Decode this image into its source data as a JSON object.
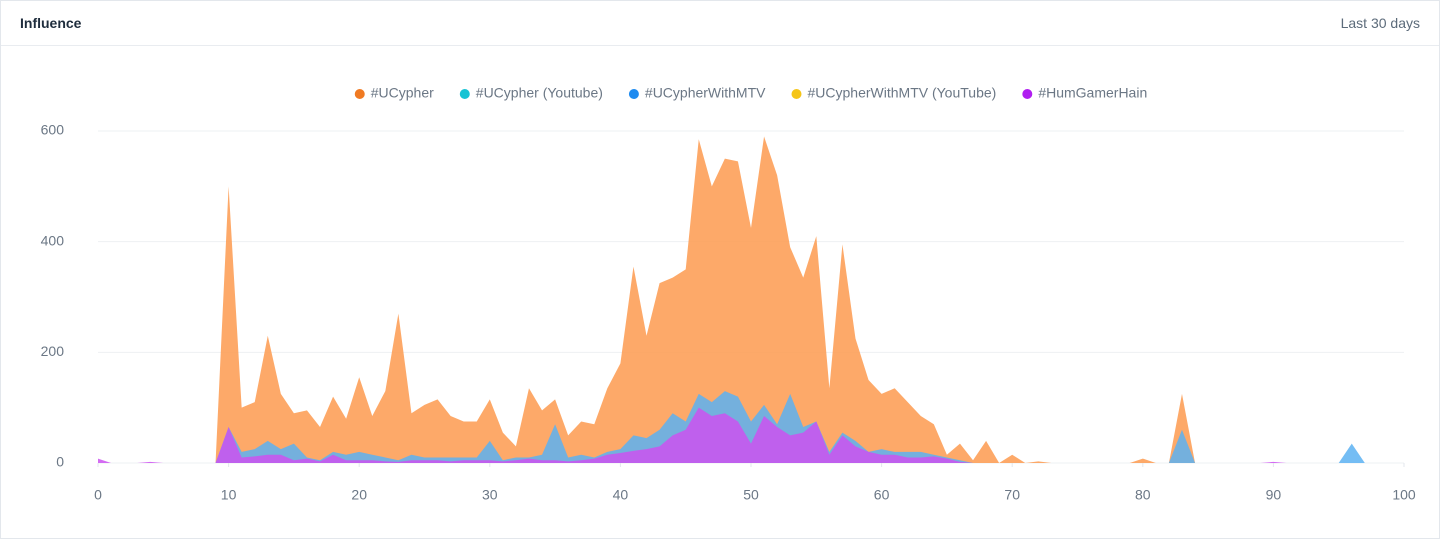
{
  "header": {
    "title": "Influence",
    "period": "Last 30 days"
  },
  "chart_data": {
    "type": "area",
    "x": [
      0,
      1,
      2,
      3,
      4,
      5,
      6,
      7,
      8,
      9,
      10,
      11,
      12,
      13,
      14,
      15,
      16,
      17,
      18,
      19,
      20,
      21,
      22,
      23,
      24,
      25,
      26,
      27,
      28,
      29,
      30,
      31,
      32,
      33,
      34,
      35,
      36,
      37,
      38,
      39,
      40,
      41,
      42,
      43,
      44,
      45,
      46,
      47,
      48,
      49,
      50,
      51,
      52,
      53,
      54,
      55,
      56,
      57,
      58,
      59,
      60,
      61,
      62,
      63,
      64,
      65,
      66,
      67,
      68,
      69,
      70,
      71,
      72,
      73,
      74,
      75,
      76,
      77,
      78,
      79,
      80,
      81,
      82,
      83,
      84,
      85,
      86,
      87,
      88,
      89,
      90,
      91,
      92,
      93,
      94,
      95,
      96,
      97,
      98,
      99,
      100
    ],
    "series": [
      {
        "name": "#UCypher",
        "color": "#f07a22",
        "area_color": "#fd9a4f",
        "values": [
          0,
          0,
          0,
          0,
          0,
          0,
          0,
          0,
          0,
          0,
          500,
          100,
          110,
          230,
          125,
          90,
          95,
          65,
          120,
          80,
          155,
          85,
          130,
          270,
          90,
          105,
          115,
          85,
          75,
          75,
          115,
          55,
          30,
          135,
          95,
          115,
          50,
          75,
          70,
          135,
          180,
          355,
          230,
          325,
          335,
          350,
          585,
          500,
          550,
          545,
          425,
          590,
          520,
          390,
          335,
          410,
          135,
          395,
          225,
          150,
          125,
          135,
          110,
          85,
          70,
          15,
          35,
          5,
          40,
          0,
          15,
          0,
          3,
          0,
          0,
          0,
          0,
          0,
          0,
          0,
          8,
          0,
          0,
          125,
          0,
          0,
          0,
          0,
          0,
          0,
          0,
          0,
          0,
          0,
          0,
          0,
          0,
          0,
          0,
          0,
          0
        ]
      },
      {
        "name": "#UCypher (Youtube)",
        "color": "#17c3d4",
        "area_color": "#4fd3df",
        "values": [
          0,
          0,
          0,
          0,
          0,
          0,
          0,
          0,
          0,
          0,
          0,
          0,
          0,
          0,
          0,
          0,
          0,
          0,
          0,
          0,
          0,
          0,
          0,
          0,
          0,
          0,
          0,
          0,
          0,
          0,
          0,
          0,
          0,
          0,
          0,
          0,
          0,
          0,
          0,
          0,
          0,
          0,
          0,
          0,
          0,
          0,
          0,
          0,
          0,
          0,
          0,
          0,
          0,
          0,
          0,
          0,
          0,
          0,
          0,
          0,
          0,
          0,
          0,
          0,
          0,
          0,
          0,
          0,
          0,
          0,
          0,
          0,
          0,
          0,
          0,
          0,
          0,
          0,
          0,
          0,
          0,
          0,
          0,
          0,
          0,
          0,
          0,
          0,
          0,
          0,
          0,
          0,
          0,
          0,
          0,
          0,
          0,
          0,
          0,
          0,
          0
        ]
      },
      {
        "name": "#UCypherWithMTV",
        "color": "#1e8bf0",
        "area_color": "#5cb2f2",
        "values": [
          0,
          0,
          0,
          0,
          0,
          0,
          0,
          0,
          0,
          0,
          65,
          20,
          25,
          40,
          25,
          35,
          10,
          5,
          20,
          15,
          20,
          15,
          10,
          5,
          15,
          10,
          10,
          10,
          10,
          10,
          40,
          5,
          10,
          10,
          15,
          70,
          10,
          15,
          10,
          20,
          25,
          50,
          45,
          60,
          90,
          75,
          125,
          110,
          130,
          120,
          75,
          105,
          70,
          125,
          65,
          75,
          20,
          55,
          40,
          20,
          25,
          20,
          20,
          20,
          15,
          10,
          5,
          0,
          0,
          0,
          0,
          0,
          0,
          0,
          0,
          0,
          0,
          0,
          0,
          0,
          0,
          0,
          0,
          60,
          0,
          0,
          0,
          0,
          0,
          0,
          0,
          0,
          0,
          0,
          0,
          0,
          35,
          0,
          0,
          0,
          0
        ]
      },
      {
        "name": "#UCypherWithMTV (YouTube)",
        "color": "#f5c518",
        "area_color": "#f7d44f",
        "values": [
          0,
          0,
          0,
          0,
          0,
          0,
          0,
          0,
          0,
          0,
          0,
          0,
          0,
          0,
          0,
          0,
          0,
          0,
          0,
          0,
          0,
          0,
          0,
          0,
          0,
          0,
          0,
          0,
          0,
          0,
          0,
          0,
          0,
          0,
          0,
          0,
          0,
          0,
          0,
          0,
          0,
          0,
          0,
          0,
          0,
          0,
          0,
          0,
          0,
          0,
          0,
          0,
          0,
          0,
          0,
          0,
          0,
          0,
          0,
          0,
          0,
          0,
          0,
          0,
          0,
          0,
          0,
          0,
          0,
          0,
          0,
          0,
          0,
          0,
          0,
          0,
          0,
          0,
          0,
          0,
          0,
          0,
          0,
          0,
          0,
          0,
          0,
          0,
          0,
          0,
          0,
          0,
          0,
          0,
          0,
          0,
          0,
          0,
          0,
          0,
          0
        ]
      },
      {
        "name": "#HumGamerHain",
        "color": "#b01ef0",
        "area_color": "#cd52f0",
        "values": [
          8,
          0,
          0,
          0,
          2,
          0,
          0,
          0,
          0,
          0,
          65,
          10,
          12,
          15,
          15,
          5,
          8,
          3,
          15,
          5,
          5,
          5,
          3,
          2,
          5,
          5,
          5,
          3,
          5,
          5,
          5,
          3,
          5,
          8,
          5,
          5,
          3,
          5,
          8,
          15,
          18,
          22,
          25,
          30,
          50,
          60,
          100,
          85,
          90,
          75,
          35,
          85,
          65,
          50,
          55,
          75,
          15,
          50,
          30,
          20,
          15,
          15,
          10,
          10,
          12,
          8,
          2,
          0,
          0,
          0,
          0,
          0,
          0,
          0,
          0,
          0,
          0,
          0,
          0,
          0,
          0,
          0,
          0,
          0,
          0,
          0,
          0,
          0,
          0,
          0,
          2,
          0,
          0,
          0,
          0,
          0,
          0,
          0,
          0,
          0,
          0
        ]
      }
    ],
    "xlim": [
      0,
      100
    ],
    "xticks": [
      0,
      10,
      20,
      30,
      40,
      50,
      60,
      70,
      80,
      90,
      100
    ],
    "ylim": [
      0,
      600
    ],
    "yticks": [
      0,
      200,
      400,
      600
    ],
    "grid": true,
    "legend": "top"
  }
}
